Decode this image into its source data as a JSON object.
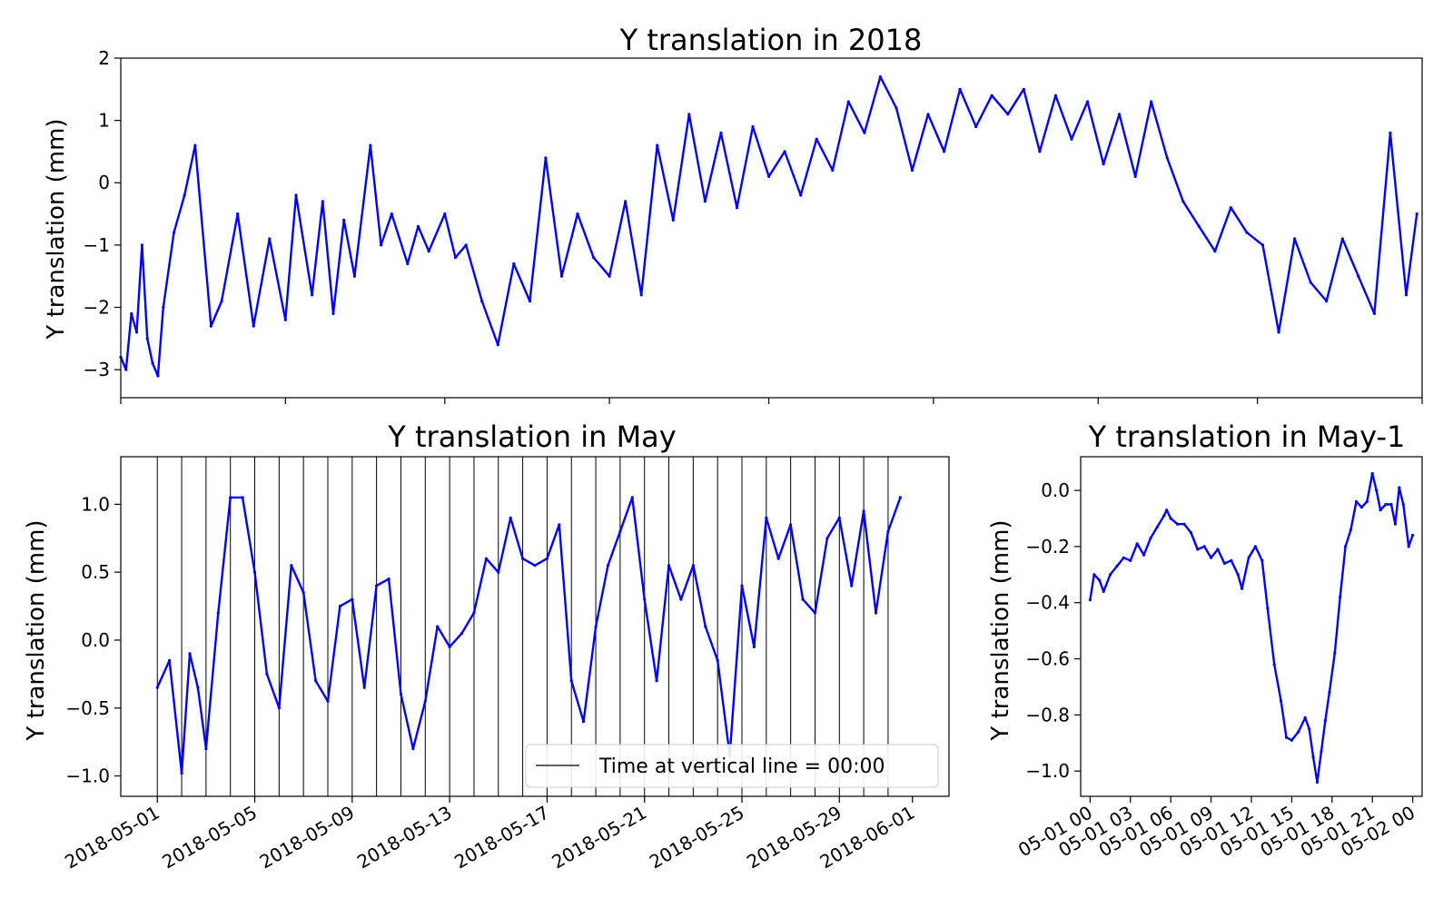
{
  "chart_data": [
    {
      "type": "line",
      "title": "Y translation in 2018",
      "ylabel": "Y translation (mm)",
      "xlabel": "",
      "xlim": [
        "2018-03-01",
        "2018-11-01"
      ],
      "ylim": [
        -3.45,
        2.0
      ],
      "yticks": [
        "2",
        "1",
        "0",
        "−1",
        "−2",
        "−3"
      ],
      "ytick_values": [
        2,
        1,
        0,
        -1,
        -2,
        -3
      ],
      "xticks": [
        "2018-03-01",
        "2018-04-01",
        "2018-05-01",
        "2018-06-01",
        "2018-07-01",
        "2018-08-01",
        "2018-09-01",
        "2018-10-01",
        "2018-11-01"
      ],
      "xtick_labels_visible": false,
      "grid": false,
      "series": [
        {
          "color": "#0000ff",
          "x": [
            "2018-03-01",
            "2018-03-02",
            "2018-03-03",
            "2018-03-04",
            "2018-03-05",
            "2018-03-06",
            "2018-03-07",
            "2018-03-08",
            "2018-03-09",
            "2018-03-11",
            "2018-03-13",
            "2018-03-15",
            "2018-03-18",
            "2018-03-20",
            "2018-03-23",
            "2018-03-26",
            "2018-03-29",
            "2018-04-01",
            "2018-04-03",
            "2018-04-06",
            "2018-04-08",
            "2018-04-10",
            "2018-04-12",
            "2018-04-14",
            "2018-04-17",
            "2018-04-19",
            "2018-04-21",
            "2018-04-24",
            "2018-04-26",
            "2018-04-28",
            "2018-05-01",
            "2018-05-03",
            "2018-05-05",
            "2018-05-08",
            "2018-05-11",
            "2018-05-14",
            "2018-05-17",
            "2018-05-20",
            "2018-05-23",
            "2018-05-26",
            "2018-05-29",
            "2018-06-01",
            "2018-06-04",
            "2018-06-07",
            "2018-06-10",
            "2018-06-13",
            "2018-06-16",
            "2018-06-19",
            "2018-06-22",
            "2018-06-25",
            "2018-06-28",
            "2018-07-01",
            "2018-07-04",
            "2018-07-07",
            "2018-07-10",
            "2018-07-13",
            "2018-07-16",
            "2018-07-19",
            "2018-07-22",
            "2018-07-25",
            "2018-07-28",
            "2018-07-31",
            "2018-08-03",
            "2018-08-06",
            "2018-08-09",
            "2018-08-12",
            "2018-08-15",
            "2018-08-18",
            "2018-08-21",
            "2018-08-24",
            "2018-08-27",
            "2018-08-30",
            "2018-09-02",
            "2018-09-05",
            "2018-09-08",
            "2018-09-11",
            "2018-09-14",
            "2018-09-17",
            "2018-09-20",
            "2018-09-23",
            "2018-09-26",
            "2018-09-29",
            "2018-10-02",
            "2018-10-05",
            "2018-10-08",
            "2018-10-11",
            "2018-10-14",
            "2018-10-17",
            "2018-10-20",
            "2018-10-23",
            "2018-10-26",
            "2018-10-29",
            "2018-10-31"
          ],
          "values": [
            -2.8,
            -3.0,
            -2.1,
            -2.4,
            -1.0,
            -2.5,
            -2.9,
            -3.1,
            -2.0,
            -0.8,
            -0.2,
            0.6,
            -2.3,
            -1.9,
            -0.5,
            -2.3,
            -0.9,
            -2.2,
            -0.2,
            -1.8,
            -0.3,
            -2.1,
            -0.6,
            -1.5,
            0.6,
            -1.0,
            -0.5,
            -1.3,
            -0.7,
            -1.1,
            -0.5,
            -1.2,
            -1.0,
            -1.9,
            -2.6,
            -1.3,
            -1.9,
            0.4,
            -1.5,
            -0.5,
            -1.2,
            -1.5,
            -0.3,
            -1.8,
            0.6,
            -0.6,
            1.1,
            -0.3,
            0.8,
            -0.4,
            0.9,
            0.1,
            0.5,
            -0.2,
            0.7,
            0.2,
            1.3,
            0.8,
            1.7,
            1.2,
            0.2,
            1.1,
            0.5,
            1.5,
            0.9,
            1.4,
            1.1,
            1.5,
            0.5,
            1.4,
            0.7,
            1.3,
            0.3,
            1.1,
            0.1,
            1.3,
            0.4,
            -0.3,
            -0.7,
            -1.1,
            -0.4,
            -0.8,
            -1.0,
            -2.4,
            -0.9,
            -1.6,
            -1.9,
            -0.9,
            -1.5,
            -2.1,
            0.8,
            -1.8,
            -0.5
          ]
        }
      ]
    },
    {
      "type": "line",
      "title": "Y translation in May",
      "ylabel": "Y translation (mm)",
      "xlabel": "",
      "xlim": [
        "2018-04-29T12:00",
        "2018-06-02T12:00"
      ],
      "ylim": [
        -1.15,
        1.35
      ],
      "yticks": [
        "1.0",
        "0.5",
        "0.0",
        "−0.5",
        "−1.0"
      ],
      "ytick_values": [
        1.0,
        0.5,
        0.0,
        -0.5,
        -1.0
      ],
      "xticks": [
        "2018-05-01",
        "2018-05-05",
        "2018-05-09",
        "2018-05-13",
        "2018-05-17",
        "2018-05-21",
        "2018-05-25",
        "2018-05-29",
        "2018-06-01"
      ],
      "vertical_lines_note": "daily vertical lines at 00:00",
      "grid": false,
      "legend": {
        "position": "lower right",
        "entries": [
          {
            "label": "Time at vertical line = 00:00",
            "color": "#000000"
          }
        ]
      },
      "series": [
        {
          "color": "#0000ff",
          "x": [
            "2018-05-01T00:00",
            "2018-05-01T12:00",
            "2018-05-02T00:00",
            "2018-05-02T08:00",
            "2018-05-02T16:00",
            "2018-05-03T00:00",
            "2018-05-03T12:00",
            "2018-05-04T00:00",
            "2018-05-04T12:00",
            "2018-05-05T00:00",
            "2018-05-05T12:00",
            "2018-05-06T00:00",
            "2018-05-06T12:00",
            "2018-05-07T00:00",
            "2018-05-07T12:00",
            "2018-05-08T00:00",
            "2018-05-08T12:00",
            "2018-05-09T00:00",
            "2018-05-09T12:00",
            "2018-05-10T00:00",
            "2018-05-10T12:00",
            "2018-05-11T00:00",
            "2018-05-11T12:00",
            "2018-05-12T00:00",
            "2018-05-12T12:00",
            "2018-05-13T00:00",
            "2018-05-13T12:00",
            "2018-05-14T00:00",
            "2018-05-14T12:00",
            "2018-05-15T00:00",
            "2018-05-15T12:00",
            "2018-05-16T00:00",
            "2018-05-16T12:00",
            "2018-05-17T00:00",
            "2018-05-17T12:00",
            "2018-05-18T00:00",
            "2018-05-18T12:00",
            "2018-05-19T00:00",
            "2018-05-19T12:00",
            "2018-05-20T00:00",
            "2018-05-20T12:00",
            "2018-05-21T00:00",
            "2018-05-21T12:00",
            "2018-05-22T00:00",
            "2018-05-22T12:00",
            "2018-05-23T00:00",
            "2018-05-23T12:00",
            "2018-05-24T00:00",
            "2018-05-24T12:00",
            "2018-05-25T00:00",
            "2018-05-25T12:00",
            "2018-05-26T00:00",
            "2018-05-26T12:00",
            "2018-05-27T00:00",
            "2018-05-27T12:00",
            "2018-05-28T00:00",
            "2018-05-28T12:00",
            "2018-05-29T00:00",
            "2018-05-29T12:00",
            "2018-05-30T00:00",
            "2018-05-30T12:00",
            "2018-05-31T00:00",
            "2018-05-31T12:00"
          ],
          "values": [
            -0.35,
            -0.15,
            -0.98,
            -0.1,
            -0.35,
            -0.8,
            0.2,
            1.05,
            1.05,
            0.5,
            -0.25,
            -0.5,
            0.55,
            0.35,
            -0.3,
            -0.45,
            0.25,
            0.3,
            -0.35,
            0.4,
            0.45,
            -0.4,
            -0.8,
            -0.45,
            0.1,
            -0.05,
            0.05,
            0.2,
            0.6,
            0.5,
            0.9,
            0.6,
            0.55,
            0.6,
            0.85,
            -0.3,
            -0.6,
            0.1,
            0.55,
            0.8,
            1.05,
            0.3,
            -0.3,
            0.55,
            0.3,
            0.55,
            0.1,
            -0.15,
            -0.85,
            0.4,
            -0.05,
            0.9,
            0.6,
            0.85,
            0.3,
            0.2,
            0.75,
            0.9,
            0.4,
            0.95,
            0.2,
            0.8,
            1.05
          ]
        }
      ]
    },
    {
      "type": "line",
      "title": "Y translation in May-1",
      "ylabel": "Y translation (mm)",
      "xlabel": "",
      "xlim": [
        "05-01 00",
        "05-02 00"
      ],
      "ylim": [
        -1.09,
        0.12
      ],
      "yticks": [
        "0.0",
        "−0.2",
        "−0.4",
        "−0.6",
        "−0.8",
        "−1.0"
      ],
      "ytick_values": [
        0.0,
        -0.2,
        -0.4,
        -0.6,
        -0.8,
        -1.0
      ],
      "xticks": [
        "05-01 00",
        "05-01 03",
        "05-01 06",
        "05-01 09",
        "05-01 12",
        "05-01 15",
        "05-01 18",
        "05-01 21",
        "05-02 00"
      ],
      "grid": false,
      "series": [
        {
          "color": "#0000ff",
          "x": [
            0.0,
            0.3,
            0.7,
            1.0,
            1.5,
            2.0,
            2.5,
            3.0,
            3.5,
            4.0,
            4.5,
            5.0,
            5.5,
            5.7,
            6.0,
            6.5,
            7.0,
            7.5,
            8.0,
            8.5,
            9.0,
            9.5,
            10.0,
            10.5,
            11.0,
            11.3,
            11.8,
            12.3,
            12.8,
            13.2,
            13.7,
            14.2,
            14.6,
            15.0,
            15.5,
            16.0,
            16.3,
            16.6,
            16.9,
            17.2,
            17.5,
            17.8,
            18.2,
            18.6,
            19.0,
            19.4,
            19.8,
            20.2,
            20.6,
            21.0,
            21.3,
            21.6,
            22.0,
            22.4,
            22.7,
            23.0,
            23.3,
            23.7,
            24.0
          ],
          "values": [
            -0.39,
            -0.3,
            -0.32,
            -0.36,
            -0.3,
            -0.27,
            -0.24,
            -0.25,
            -0.19,
            -0.23,
            -0.17,
            -0.13,
            -0.09,
            -0.07,
            -0.1,
            -0.12,
            -0.12,
            -0.15,
            -0.21,
            -0.2,
            -0.24,
            -0.21,
            -0.26,
            -0.25,
            -0.3,
            -0.35,
            -0.24,
            -0.2,
            -0.25,
            -0.42,
            -0.62,
            -0.75,
            -0.88,
            -0.89,
            -0.86,
            -0.81,
            -0.85,
            -0.95,
            -1.04,
            -0.93,
            -0.82,
            -0.72,
            -0.58,
            -0.38,
            -0.2,
            -0.14,
            -0.04,
            -0.06,
            -0.04,
            0.06,
            0.0,
            -0.07,
            -0.05,
            -0.05,
            -0.12,
            0.01,
            -0.05,
            -0.2,
            -0.16
          ]
        }
      ]
    }
  ]
}
